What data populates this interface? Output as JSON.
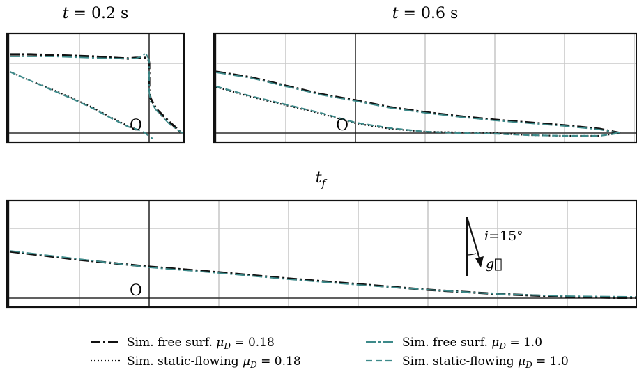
{
  "chart_data": [
    {
      "type": "line",
      "title": "t = 0.2 s",
      "origin_label": "O",
      "xlim": [
        -2.0,
        0.5
      ],
      "ylim": [
        -0.15,
        1.15
      ],
      "grid": true,
      "series": [
        {
          "name": "Sim. free surf. μD = 0.18",
          "color": "#111111",
          "style": "dashdot",
          "width": 3.2,
          "points": [
            [
              -2.0,
              1.13
            ],
            [
              -1.7,
              1.13
            ],
            [
              -1.4,
              1.12
            ],
            [
              -1.1,
              1.11
            ],
            [
              -0.8,
              1.1
            ],
            [
              -0.5,
              1.08
            ],
            [
              -0.3,
              1.07
            ],
            [
              -0.2,
              1.08
            ],
            [
              -0.05,
              1.08
            ],
            [
              -0.01,
              1.06
            ],
            [
              0.0,
              1.0
            ],
            [
              0.0,
              0.85
            ],
            [
              0.0,
              0.6
            ],
            [
              0.02,
              0.5
            ],
            [
              0.1,
              0.35
            ],
            [
              0.2,
              0.25
            ],
            [
              0.3,
              0.15
            ],
            [
              0.38,
              0.08
            ],
            [
              0.45,
              0.01
            ]
          ]
        },
        {
          "name": "Sim. static-flowing μD = 0.18",
          "color": "#111111",
          "style": "dotted",
          "width": 2.2,
          "points": [
            [
              -2.0,
              0.88
            ],
            [
              -1.7,
              0.75
            ],
            [
              -1.4,
              0.63
            ],
            [
              -1.1,
              0.5
            ],
            [
              -0.8,
              0.36
            ],
            [
              -0.5,
              0.2
            ],
            [
              -0.3,
              0.1
            ],
            [
              -0.15,
              0.04
            ]
          ]
        },
        {
          "name": "Sim. free surf. μD = 1.0",
          "color": "#3d8a8a",
          "style": "dashdot",
          "width": 1.8,
          "points": [
            [
              -2.0,
              1.1
            ],
            [
              -1.7,
              1.1
            ],
            [
              -1.4,
              1.1
            ],
            [
              -1.1,
              1.09
            ],
            [
              -0.8,
              1.08
            ],
            [
              -0.5,
              1.07
            ],
            [
              -0.2,
              1.07
            ],
            [
              -0.1,
              1.1
            ],
            [
              -0.05,
              1.15
            ],
            [
              0.0,
              1.05
            ],
            [
              0.0,
              0.6
            ],
            [
              0.02,
              0.45
            ],
            [
              0.1,
              0.33
            ],
            [
              0.2,
              0.22
            ],
            [
              0.3,
              0.12
            ],
            [
              0.4,
              0.05
            ],
            [
              0.48,
              0.0
            ]
          ]
        },
        {
          "name": "Sim. static-flowing μD = 1.0",
          "color": "#3d8a8a",
          "style": "dashed",
          "width": 2.2,
          "points": [
            [
              -2.0,
              0.88
            ],
            [
              -1.7,
              0.75
            ],
            [
              -1.4,
              0.62
            ],
            [
              -1.1,
              0.49
            ],
            [
              -0.8,
              0.35
            ],
            [
              -0.5,
              0.19
            ],
            [
              -0.3,
              0.09
            ],
            [
              -0.1,
              0.03
            ],
            [
              0.05,
              -0.08
            ]
          ]
        }
      ]
    },
    {
      "type": "line",
      "title": "t = 0.6 s",
      "origin_label": "O",
      "xlim": [
        -2.0,
        4.0
      ],
      "ylim": [
        -0.15,
        1.15
      ],
      "grid": true,
      "series": [
        {
          "name": "Sim. free surf. μD = 0.18",
          "color": "#111111",
          "style": "dashdot",
          "width": 3.2,
          "points": [
            [
              -2.0,
              0.88
            ],
            [
              -1.5,
              0.8
            ],
            [
              -1.0,
              0.68
            ],
            [
              -0.5,
              0.56
            ],
            [
              0.0,
              0.47
            ],
            [
              0.5,
              0.37
            ],
            [
              1.0,
              0.3
            ],
            [
              1.5,
              0.24
            ],
            [
              2.0,
              0.19
            ],
            [
              2.5,
              0.15
            ],
            [
              3.0,
              0.11
            ],
            [
              3.5,
              0.06
            ],
            [
              3.8,
              0.0
            ]
          ]
        },
        {
          "name": "Sim. static-flowing μD = 0.18",
          "color": "#111111",
          "style": "dotted",
          "width": 2.2,
          "points": [
            [
              -2.0,
              0.66
            ],
            [
              -1.5,
              0.52
            ],
            [
              -1.0,
              0.4
            ],
            [
              -0.5,
              0.28
            ],
            [
              0.0,
              0.14
            ],
            [
              0.5,
              0.06
            ],
            [
              1.0,
              0.02
            ],
            [
              1.5,
              0.01
            ],
            [
              2.0,
              0.0
            ],
            [
              2.5,
              -0.03
            ],
            [
              3.0,
              -0.04
            ],
            [
              3.5,
              -0.04
            ],
            [
              3.8,
              0.0
            ]
          ]
        },
        {
          "name": "Sim. free surf. μD = 1.0",
          "color": "#3d8a8a",
          "style": "dashdot",
          "width": 1.8,
          "points": [
            [
              -2.0,
              0.87
            ],
            [
              -1.5,
              0.79
            ],
            [
              -1.0,
              0.67
            ],
            [
              -0.5,
              0.55
            ],
            [
              0.0,
              0.46
            ],
            [
              0.5,
              0.36
            ],
            [
              1.0,
              0.29
            ],
            [
              1.5,
              0.23
            ],
            [
              2.0,
              0.18
            ],
            [
              2.5,
              0.14
            ],
            [
              3.0,
              0.1
            ],
            [
              3.5,
              0.05
            ],
            [
              3.8,
              0.0
            ]
          ]
        },
        {
          "name": "Sim. static-flowing μD = 1.0",
          "color": "#3d8a8a",
          "style": "dashed",
          "width": 2.2,
          "points": [
            [
              -2.0,
              0.67
            ],
            [
              -1.5,
              0.53
            ],
            [
              -1.0,
              0.41
            ],
            [
              -0.5,
              0.29
            ],
            [
              0.0,
              0.15
            ],
            [
              0.5,
              0.07
            ],
            [
              1.0,
              0.02
            ],
            [
              1.5,
              0.0
            ],
            [
              2.0,
              -0.01
            ],
            [
              2.5,
              -0.03
            ],
            [
              3.0,
              -0.04
            ],
            [
              3.5,
              -0.04
            ],
            [
              3.8,
              0.0
            ]
          ]
        }
      ]
    },
    {
      "type": "line",
      "title": "t_f",
      "origin_label": "O",
      "xlim": [
        -2.0,
        7.0
      ],
      "ylim": [
        -0.15,
        1.15
      ],
      "grid": true,
      "series": [
        {
          "name": "Sim. free surf. μD = 0.18",
          "color": "#111111",
          "style": "dashdot",
          "width": 3.2,
          "points": [
            [
              -2.0,
              0.67
            ],
            [
              -1.0,
              0.55
            ],
            [
              0.0,
              0.45
            ],
            [
              1.0,
              0.37
            ],
            [
              2.0,
              0.28
            ],
            [
              3.0,
              0.2
            ],
            [
              4.0,
              0.12
            ],
            [
              5.0,
              0.06
            ],
            [
              6.0,
              0.02
            ],
            [
              7.0,
              0.0
            ]
          ]
        },
        {
          "name": "Sim. free surf. μD = 1.0",
          "color": "#3d8a8a",
          "style": "dashdot",
          "width": 1.8,
          "points": [
            [
              -2.0,
              0.68
            ],
            [
              -1.0,
              0.56
            ],
            [
              0.0,
              0.44
            ],
            [
              1.0,
              0.36
            ],
            [
              2.0,
              0.27
            ],
            [
              3.0,
              0.19
            ],
            [
              4.0,
              0.12
            ],
            [
              5.0,
              0.06
            ],
            [
              6.0,
              0.03
            ],
            [
              7.0,
              0.02
            ]
          ]
        }
      ],
      "annotation": {
        "angle_label": "i=15°",
        "vector_label": "g⃗"
      }
    }
  ],
  "legend": [
    {
      "label": "Sim. free surf. μD = 0.18",
      "color": "#111111",
      "style": "dashdot",
      "prefix": "Sim. free surf. ",
      "mu": "μ",
      "sub": "D",
      "value": " = 0.18"
    },
    {
      "label": "Sim. static-flowing μD = 0.18",
      "color": "#111111",
      "style": "dotted",
      "prefix": "Sim. static-flowing ",
      "mu": "μ",
      "sub": "D",
      "value": " = 0.18"
    },
    {
      "label": "Sim. free surf. μD = 1.0",
      "color": "#3d8a8a",
      "style": "dashdot",
      "prefix": "Sim. free surf. ",
      "mu": "μ",
      "sub": "D",
      "value": " = 1.0"
    },
    {
      "label": "Sim. static-flowing μD = 1.0",
      "color": "#3d8a8a",
      "style": "dashed",
      "prefix": "Sim. static-flowing ",
      "mu": "μ",
      "sub": "D",
      "value": " = 1.0"
    }
  ]
}
